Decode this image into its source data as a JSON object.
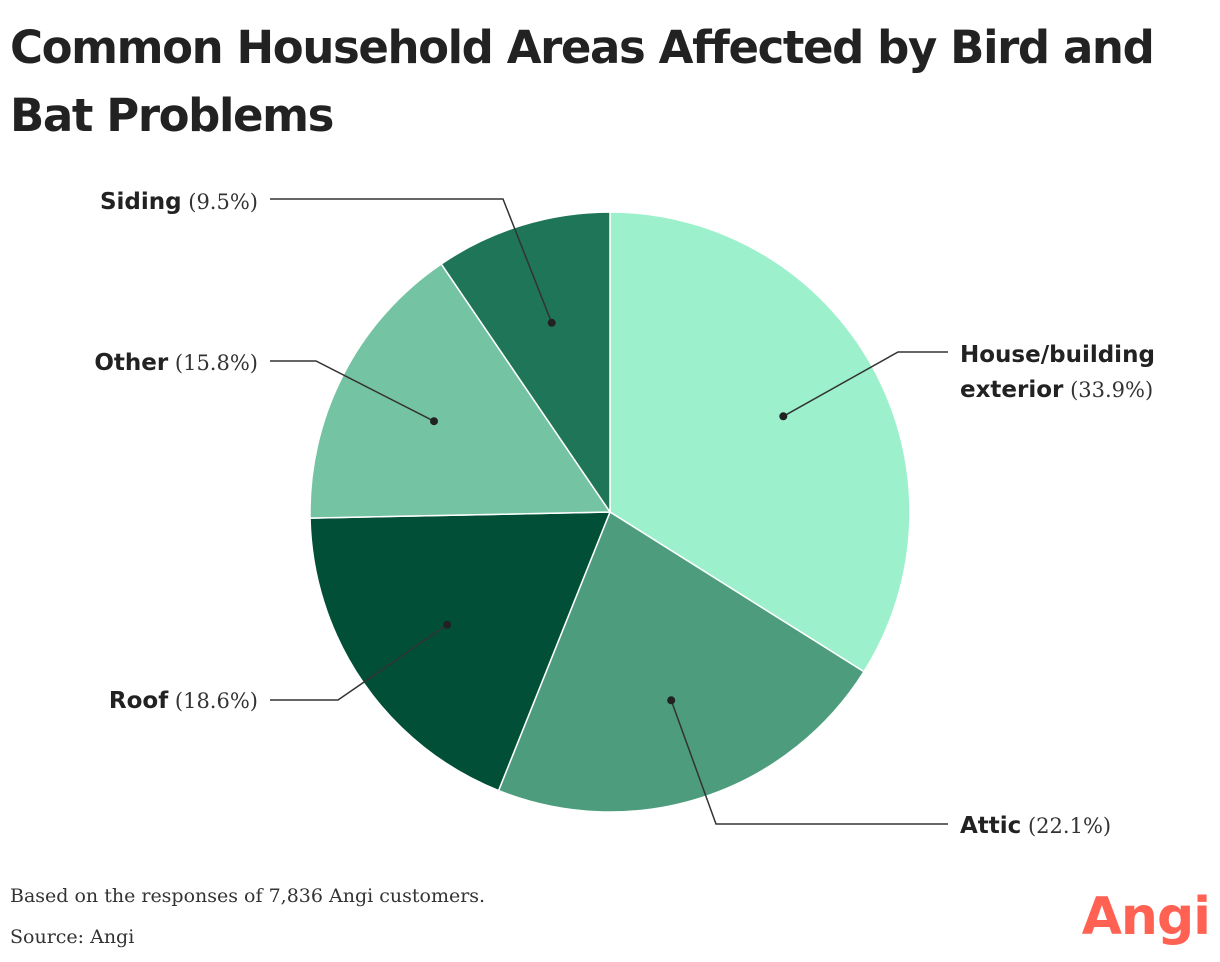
{
  "title": "Common Household Areas Affected by Bird and Bat Problems",
  "footnote": {
    "note": "Based on the responses of 7,836 Angi customers.",
    "source": "Source: Angi"
  },
  "brand": {
    "name": "Angi",
    "color": "#ff6153"
  },
  "chart_data": {
    "type": "pie",
    "title": "Common Household Areas Affected by Bird and Bat Problems",
    "slices": [
      {
        "name": "House/building exterior",
        "name_lines": [
          "House/building",
          "exterior"
        ],
        "pct_label": "(33.9%)",
        "value": 33.9,
        "color": "#9df0cc"
      },
      {
        "name": "Attic",
        "name_lines": [
          "Attic"
        ],
        "pct_label": "(22.1%)",
        "value": 22.1,
        "color": "#4c9c7d"
      },
      {
        "name": "Roof",
        "name_lines": [
          "Roof"
        ],
        "pct_label": "(18.6%)",
        "value": 18.6,
        "color": "#014f36"
      },
      {
        "name": "Other",
        "name_lines": [
          "Other"
        ],
        "pct_label": "(15.8%)",
        "value": 15.8,
        "color": "#74c4a4"
      },
      {
        "name": "Siding",
        "name_lines": [
          "Siding"
        ],
        "pct_label": "(9.5%)",
        "value": 9.5,
        "color": "#1f7558"
      }
    ],
    "start_angle_deg": 0,
    "direction": "clockwise",
    "legend": "none",
    "labels": "callouts with leader lines"
  }
}
